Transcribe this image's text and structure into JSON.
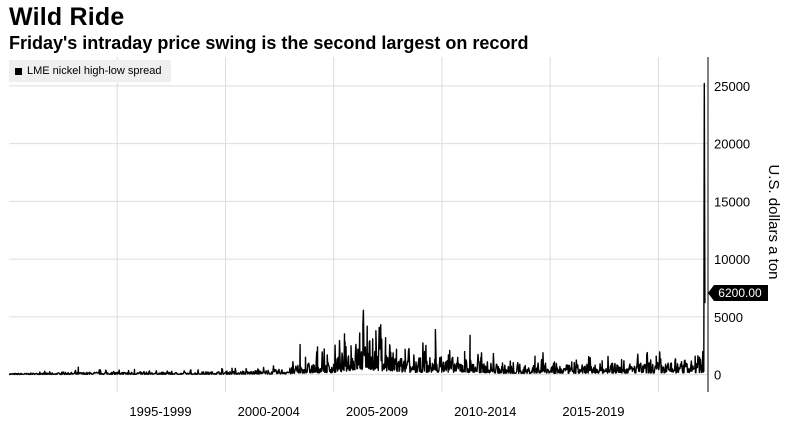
{
  "title": "Wild Ride",
  "subtitle": "Friday's intraday price swing is the second largest on record",
  "legend_label": "LME nickel high-low spread",
  "last_value_label": "6200.00",
  "colors": {
    "series": "#000000",
    "grid": "#dddddd",
    "legend_bg": "#efefef",
    "value_badge": "#000000"
  },
  "chart_data": {
    "type": "line",
    "title": "Wild Ride",
    "subtitle": "Friday's intraday price swing is the second largest on record",
    "xlabel": "",
    "ylabel": "U.S. dollars a ton",
    "xlim": [
      1990,
      2022.2
    ],
    "ylim": [
      -1500,
      27500
    ],
    "yticks": [
      0,
      5000,
      10000,
      15000,
      20000,
      25000
    ],
    "x_tick_labels": [
      "1995-1999",
      "2000-2004",
      "2005-2009",
      "2010-2014",
      "2015-2019"
    ],
    "x_tick_label_centers": [
      1997,
      2002,
      2007,
      2012,
      2017
    ],
    "x_gridlines": [
      1995,
      2000,
      2005,
      2010,
      2015,
      2020
    ],
    "grid": true,
    "legend_position": "top-left",
    "y_axis_side": "right",
    "last_value": 6200,
    "series": [
      {
        "name": "LME nickel high-low spread",
        "baseline": [
          [
            1990,
            60
          ],
          [
            1993,
            110
          ],
          [
            1995,
            140
          ],
          [
            1998,
            110
          ],
          [
            2000,
            170
          ],
          [
            2002,
            200
          ],
          [
            2003,
            320
          ],
          [
            2003.5,
            500
          ],
          [
            2004,
            600
          ],
          [
            2005,
            700
          ],
          [
            2005.5,
            1150
          ],
          [
            2006,
            1600
          ],
          [
            2006.5,
            1700
          ],
          [
            2007,
            1500
          ],
          [
            2007.5,
            1200
          ],
          [
            2008,
            900
          ],
          [
            2008.5,
            700
          ],
          [
            2009,
            800
          ],
          [
            2010,
            900
          ],
          [
            2011,
            800
          ],
          [
            2012,
            650
          ],
          [
            2013,
            450
          ],
          [
            2014,
            400
          ],
          [
            2014.5,
            600
          ],
          [
            2015,
            500
          ],
          [
            2016,
            450
          ],
          [
            2017,
            500
          ],
          [
            2018,
            550
          ],
          [
            2019,
            550
          ],
          [
            2020,
            600
          ],
          [
            2021,
            550
          ],
          [
            2021.8,
            700
          ],
          [
            2022.1,
            800
          ]
        ],
        "spikes": [
          [
            1993.2,
            650
          ],
          [
            1995.8,
            450
          ],
          [
            1998.4,
            420
          ],
          [
            2000.3,
            550
          ],
          [
            2001.5,
            500
          ],
          [
            2003.45,
            2600
          ],
          [
            2003.7,
            1500
          ],
          [
            2004.25,
            2400
          ],
          [
            2004.7,
            1700
          ],
          [
            2005.5,
            3000
          ],
          [
            2005.8,
            2500
          ],
          [
            2006.2,
            3600
          ],
          [
            2006.35,
            4300
          ],
          [
            2006.55,
            4200
          ],
          [
            2006.8,
            3100
          ],
          [
            2006.95,
            3800
          ],
          [
            2007.2,
            3000
          ],
          [
            2007.4,
            3200
          ],
          [
            2007.6,
            2400
          ],
          [
            2007.9,
            2200
          ],
          [
            2008.3,
            2200
          ],
          [
            2008.7,
            1700
          ],
          [
            2009.2,
            2000
          ],
          [
            2009.7,
            3900
          ],
          [
            2010.3,
            1700
          ],
          [
            2011.05,
            2000
          ],
          [
            2011.3,
            3400
          ],
          [
            2011.8,
            1500
          ],
          [
            2012.8,
            1000
          ],
          [
            2013.6,
            900
          ],
          [
            2014.3,
            1600
          ],
          [
            2014.6,
            1300
          ],
          [
            2015.2,
            1100
          ],
          [
            2016.0,
            1100
          ],
          [
            2016.7,
            900
          ],
          [
            2017.4,
            1200
          ],
          [
            2018.3,
            1300
          ],
          [
            2019.5,
            1100
          ],
          [
            2019.9,
            1600
          ],
          [
            2020.6,
            1000
          ],
          [
            2021.2,
            1200
          ],
          [
            2021.7,
            1600
          ],
          [
            2021.9,
            1500
          ],
          [
            2022.05,
            2000
          ],
          [
            2022.12,
            25200
          ],
          [
            2022.15,
            6200
          ]
        ]
      }
    ]
  }
}
